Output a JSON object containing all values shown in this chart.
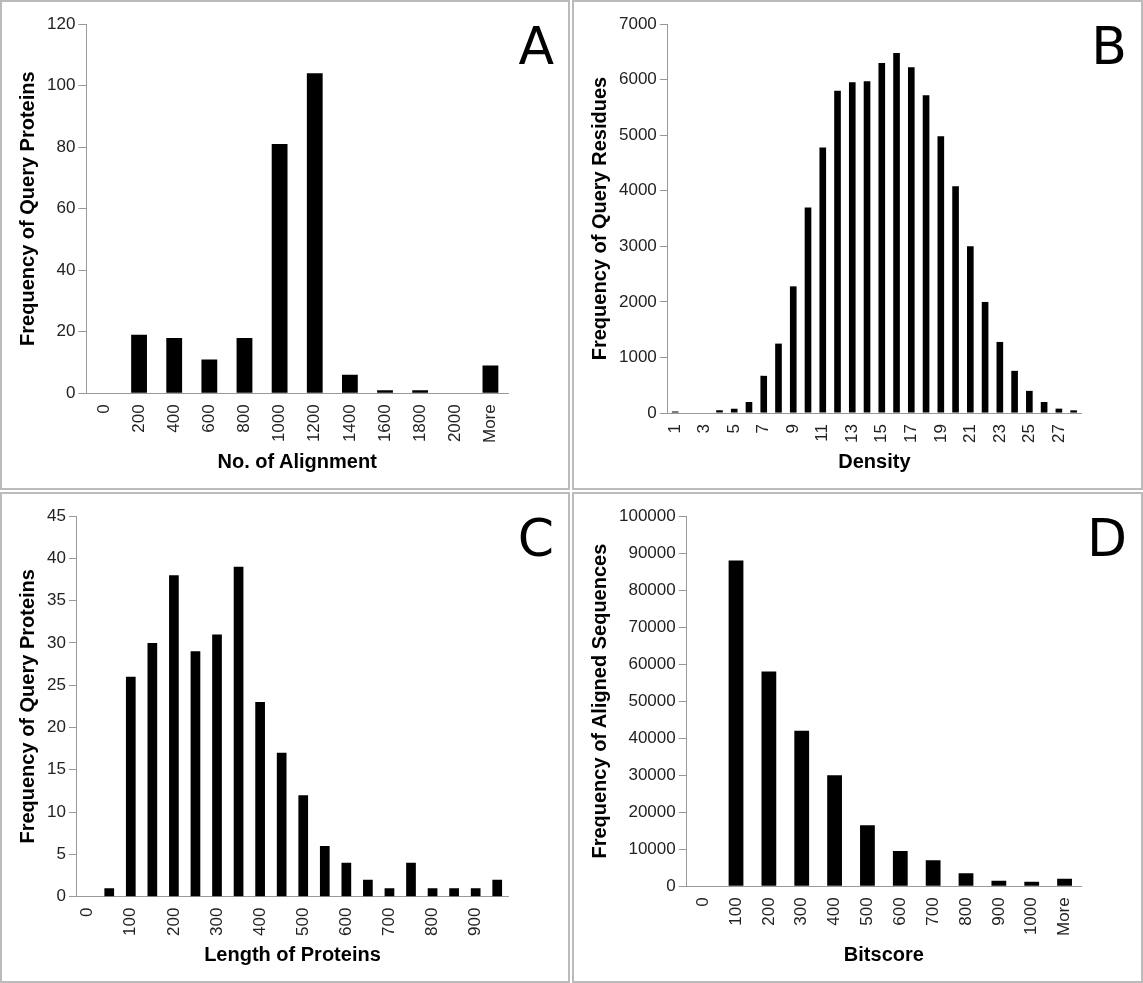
{
  "chart_data": [
    {
      "type": "bar",
      "xlabel": "No. of Alignment",
      "ylabel": "Frequency of Query Proteins",
      "annotations": [
        "A"
      ],
      "categories": [
        "0",
        "200",
        "400",
        "600",
        "800",
        "1000",
        "1200",
        "1400",
        "1600",
        "1800",
        "2000",
        "More"
      ],
      "values": [
        0,
        19,
        18,
        11,
        18,
        81,
        104,
        6,
        1,
        1,
        0,
        9
      ],
      "color": "#000000",
      "ylim": [
        0,
        120
      ],
      "yticks": [
        0,
        20,
        40,
        60,
        80,
        100,
        120
      ],
      "grid": false,
      "legend": false
    },
    {
      "type": "bar",
      "xlabel": "Density",
      "ylabel": "Frequency of Query Residues",
      "annotations": [
        "B"
      ],
      "categories": [
        "1",
        null,
        "3",
        null,
        "5",
        null,
        "7",
        null,
        "9",
        null,
        "11",
        null,
        "13",
        null,
        "15",
        null,
        "17",
        null,
        "19",
        null,
        "21",
        null,
        "23",
        null,
        "25",
        null,
        "27",
        null
      ],
      "values": [
        30,
        0,
        0,
        50,
        80,
        200,
        670,
        1250,
        2280,
        3700,
        4780,
        5800,
        5950,
        5970,
        6300,
        6480,
        6220,
        5720,
        4980,
        4080,
        3000,
        2000,
        1280,
        760,
        400,
        200,
        80,
        50
      ],
      "color": "#000000",
      "ylim": [
        0,
        7000
      ],
      "yticks": [
        0,
        1000,
        2000,
        3000,
        4000,
        5000,
        6000,
        7000
      ],
      "grid": false,
      "legend": false
    },
    {
      "type": "bar",
      "xlabel": "Length of Proteins",
      "ylabel": "Frequency of Query Proteins",
      "annotations": [
        "C"
      ],
      "categories": [
        "0",
        null,
        "100",
        null,
        "200",
        null,
        "300",
        null,
        "400",
        null,
        "500",
        null,
        "600",
        null,
        "700",
        null,
        "800",
        null,
        "900",
        null
      ],
      "values": [
        0,
        1,
        26,
        30,
        38,
        29,
        31,
        39,
        23,
        17,
        12,
        6,
        4,
        2,
        1,
        4,
        1,
        1,
        1,
        2
      ],
      "color": "#000000",
      "ylim": [
        0,
        45
      ],
      "yticks": [
        0,
        5,
        10,
        15,
        20,
        25,
        30,
        35,
        40,
        45
      ],
      "grid": false,
      "legend": false
    },
    {
      "type": "bar",
      "xlabel": "Bitscore",
      "ylabel": "Frequency of Aligned Sequences",
      "annotations": [
        "D"
      ],
      "categories": [
        "0",
        "100",
        "200",
        "300",
        "400",
        "500",
        "600",
        "700",
        "800",
        "900",
        "1000",
        "More"
      ],
      "values": [
        0,
        88000,
        58000,
        42000,
        30000,
        16500,
        9500,
        7000,
        3500,
        1500,
        1200,
        2000
      ],
      "color": "#000000",
      "ylim": [
        0,
        100000
      ],
      "yticks": [
        0,
        10000,
        20000,
        30000,
        40000,
        50000,
        60000,
        70000,
        80000,
        90000,
        100000
      ],
      "grid": false,
      "legend": false
    }
  ]
}
